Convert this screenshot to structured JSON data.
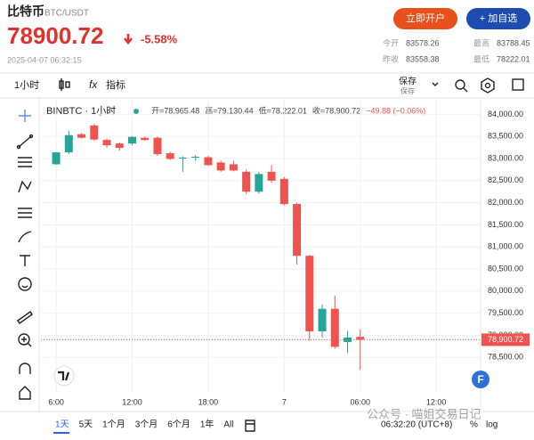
{
  "header": {
    "title": "比特币",
    "pair": "BTC/USDT",
    "price": "78900.72",
    "change": "-5.58%",
    "time": "2025-04-07 06:32:15",
    "buttons": [
      "立即开户",
      "+ 加自选"
    ],
    "stats": [
      {
        "label": "今开",
        "value": 83578.26
      },
      {
        "label": "最高",
        "value": 83788.45
      },
      {
        "label": "昨收",
        "value": 83558.38
      },
      {
        "label": "最低",
        "value": 78222.01
      }
    ]
  },
  "toolbar": {
    "interval": "1小时",
    "indicators": "指标",
    "save": "保存",
    "save_sub": "保存"
  },
  "chart_data": {
    "type": "candlestick",
    "symbol": "BINBTC · 1小时",
    "legend_items": [
      "开=78,965.48",
      "高=79,130.44",
      "低=78,222.01",
      "收=78,900.72",
      "−49.88 (−0.06%)"
    ],
    "x": [
      6,
      7,
      8,
      9,
      10,
      11,
      12,
      13,
      14,
      15,
      16,
      17,
      18,
      19,
      20,
      21,
      22,
      23,
      24,
      25,
      26,
      27,
      28,
      29,
      30
    ],
    "open": [
      82870,
      83140,
      83550,
      83750,
      83420,
      83340,
      83340,
      83470,
      83470,
      83120,
      83000,
      83030,
      83030,
      82910,
      82870,
      82700,
      82250,
      82700,
      82540,
      81970,
      80800,
      79090,
      79600,
      78850,
      78965.48
    ],
    "high": [
      83150,
      83630,
      83580,
      83780,
      83450,
      83360,
      83510,
      83500,
      83500,
      83150,
      83050,
      83080,
      83060,
      82950,
      82950,
      82750,
      82700,
      82850,
      82580,
      82000,
      80820,
      79700,
      79900,
      79100,
      79130.44
    ],
    "low": [
      82860,
      83100,
      83450,
      83400,
      83250,
      83180,
      83300,
      83400,
      83060,
      82970,
      82700,
      82950,
      82830,
      82700,
      82710,
      82200,
      82200,
      82450,
      81940,
      80600,
      78880,
      78950,
      78700,
      78600,
      78222.01
    ],
    "close": [
      83140,
      83530,
      83470,
      83430,
      83300,
      83240,
      83490,
      83420,
      83100,
      82990,
      83020,
      83040,
      82850,
      82730,
      82730,
      82250,
      82650,
      82500,
      81970,
      80800,
      79090,
      79600,
      78740,
      78950,
      78900.72
    ],
    "up_color": "#26a69a",
    "down_color": "#ef5350",
    "xlim": [
      4.8,
      39.5
    ],
    "xticks": [
      {
        "value": 6,
        "label": "6:00"
      },
      {
        "value": 12,
        "label": "12:00"
      },
      {
        "value": 18,
        "label": "18:00"
      },
      {
        "value": 24,
        "label": "7"
      },
      {
        "value": 30,
        "label": "06:00"
      },
      {
        "value": 36,
        "label": "12:00"
      }
    ],
    "ylim": [
      77720,
      84330
    ],
    "yticks": [
      {
        "value": 78500,
        "label": "78,500.00"
      },
      {
        "value": 79000,
        "label": "79,000.00"
      },
      {
        "value": 79500,
        "label": "79,500.00"
      },
      {
        "value": 80000,
        "label": "80,000.00"
      },
      {
        "value": 80500,
        "label": "80,500.00"
      },
      {
        "value": 81000,
        "label": "81,000.00"
      },
      {
        "value": 81500,
        "label": "81,500.00"
      },
      {
        "value": 82000,
        "label": "82,000.00"
      },
      {
        "value": 82500,
        "label": "82,500.00"
      },
      {
        "value": 83000,
        "label": "83,000.00"
      },
      {
        "value": 83500,
        "label": "83,500.00"
      },
      {
        "value": 84000,
        "label": "84,000.00"
      }
    ],
    "last_price": {
      "value": 78900.72,
      "label": "78,900.72"
    },
    "grid": true
  },
  "footer": {
    "ranges": [
      "1天",
      "5天",
      "1个月",
      "3个月",
      "6个月",
      "1年",
      "All"
    ],
    "clock": "06:32:20 (UTC+8)",
    "percent": "%",
    "log": "log",
    "watermark": "公众号 · 喵姐交易日记"
  }
}
